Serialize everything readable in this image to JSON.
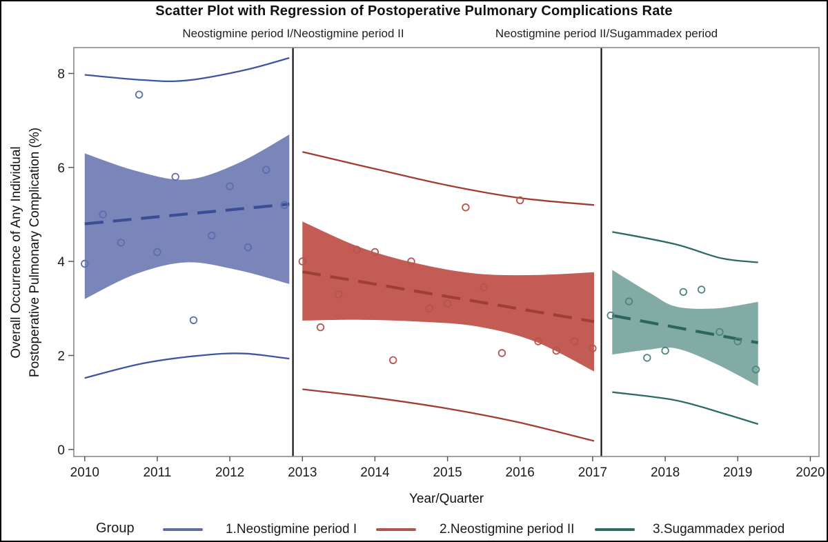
{
  "title": "Scatter Plot with Regression of Postoperative Pulmonary Complications Rate",
  "panel_headers": [
    "Neostigmine period I/Neostigmine period II",
    "Neostigmine period II/Sugammadex period"
  ],
  "y_axis_label_line1": "Overall Occurrence of Any Individual",
  "y_axis_label_line2": "Postoperative Pulmonary Complication (%)",
  "x_axis_label": "Year/Quarter",
  "legend": {
    "title": "Group",
    "entries": [
      {
        "label": "1.Neostigmine period I",
        "color": "#5b6cb0"
      },
      {
        "label": "2.Neostigmine period II",
        "color": "#b5544c"
      },
      {
        "label": "3.Sugammadex period",
        "color": "#2c6b64"
      }
    ]
  },
  "chart_data": {
    "type": "scatter",
    "title": "Scatter Plot with Regression of Postoperative Pulmonary Complications Rate",
    "xlabel": "Year/Quarter",
    "ylabel": "Overall Occurrence of Any Individual Postoperative Pulmonary Complication (%)",
    "x_ticks": [
      2010,
      2011,
      2012,
      2013,
      2014,
      2015,
      2016,
      2017,
      2018,
      2019,
      2020
    ],
    "y_ticks": [
      0,
      2,
      4,
      6,
      8
    ],
    "xlim": [
      2009.85,
      2020.12
    ],
    "ylim": [
      -0.15,
      8.55
    ],
    "grid": false,
    "legend_position": "bottom",
    "panel_dividers_x": [
      2012.87,
      2017.12
    ],
    "series": [
      {
        "name": "1.Neostigmine period I",
        "colors": {
          "band": "#7a86b9",
          "line": "#3d55a5",
          "regression": "#3a4d95",
          "marker": "#5b6cb0"
        },
        "points": [
          [
            2010.0,
            3.95
          ],
          [
            2010.25,
            5.0
          ],
          [
            2010.5,
            4.4
          ],
          [
            2010.75,
            7.55
          ],
          [
            2011.0,
            4.2
          ],
          [
            2011.25,
            5.8
          ],
          [
            2011.5,
            2.75
          ],
          [
            2011.75,
            4.55
          ],
          [
            2012.0,
            5.6
          ],
          [
            2012.25,
            4.3
          ],
          [
            2012.5,
            5.95
          ],
          [
            2012.75,
            5.2
          ]
        ],
        "regression": [
          [
            2010.0,
            4.8
          ],
          [
            2012.82,
            5.22
          ]
        ],
        "band_top": [
          [
            2010.0,
            6.3
          ],
          [
            2010.7,
            5.93
          ],
          [
            2011.4,
            5.74
          ],
          [
            2012.1,
            6.08
          ],
          [
            2012.82,
            6.7
          ]
        ],
        "band_bottom": [
          [
            2010.0,
            3.2
          ],
          [
            2010.7,
            3.73
          ],
          [
            2011.4,
            3.98
          ],
          [
            2012.1,
            3.82
          ],
          [
            2012.82,
            3.52
          ]
        ],
        "upper_limit": [
          [
            2010.0,
            7.97
          ],
          [
            2010.8,
            7.86
          ],
          [
            2011.4,
            7.85
          ],
          [
            2012.2,
            8.07
          ],
          [
            2012.82,
            8.33
          ]
        ],
        "lower_limit": [
          [
            2010.0,
            1.52
          ],
          [
            2010.8,
            1.83
          ],
          [
            2011.6,
            2.0
          ],
          [
            2012.2,
            2.04
          ],
          [
            2012.82,
            1.93
          ]
        ]
      },
      {
        "name": "2.Neostigmine period II",
        "colors": {
          "band": "#c25c55",
          "line": "#a23b33",
          "regression": "#9e3e36",
          "marker": "#b5544c"
        },
        "points": [
          [
            2013.0,
            4.0
          ],
          [
            2013.25,
            2.6
          ],
          [
            2013.5,
            3.3
          ],
          [
            2013.75,
            4.25
          ],
          [
            2014.0,
            4.2
          ],
          [
            2014.25,
            1.9
          ],
          [
            2014.5,
            4.0
          ],
          [
            2014.75,
            3.0
          ],
          [
            2015.0,
            3.1
          ],
          [
            2015.25,
            5.15
          ],
          [
            2015.5,
            3.45
          ],
          [
            2015.75,
            2.05
          ],
          [
            2016.0,
            5.3
          ],
          [
            2016.25,
            2.3
          ],
          [
            2016.5,
            2.1
          ],
          [
            2016.75,
            2.3
          ],
          [
            2017.0,
            2.15
          ]
        ],
        "regression": [
          [
            2013.0,
            3.78
          ],
          [
            2017.02,
            2.72
          ]
        ],
        "band_top": [
          [
            2013.0,
            4.85
          ],
          [
            2013.8,
            4.3
          ],
          [
            2014.6,
            3.95
          ],
          [
            2015.4,
            3.74
          ],
          [
            2016.2,
            3.71
          ],
          [
            2017.02,
            3.77
          ]
        ],
        "band_bottom": [
          [
            2013.0,
            2.74
          ],
          [
            2013.8,
            2.76
          ],
          [
            2014.6,
            2.72
          ],
          [
            2015.4,
            2.62
          ],
          [
            2016.2,
            2.3
          ],
          [
            2017.02,
            1.66
          ]
        ],
        "upper_limit": [
          [
            2013.0,
            6.33
          ],
          [
            2014.0,
            5.97
          ],
          [
            2015.0,
            5.62
          ],
          [
            2016.0,
            5.35
          ],
          [
            2017.02,
            5.2
          ]
        ],
        "lower_limit": [
          [
            2013.0,
            1.28
          ],
          [
            2014.0,
            1.1
          ],
          [
            2015.0,
            0.87
          ],
          [
            2016.0,
            0.57
          ],
          [
            2017.02,
            0.18
          ]
        ]
      },
      {
        "name": "3.Sugammadex period",
        "colors": {
          "band": "#81aba4",
          "line": "#2c6b64",
          "regression": "#2b665f",
          "marker": "#4f837d"
        },
        "points": [
          [
            2017.25,
            2.85
          ],
          [
            2017.5,
            3.15
          ],
          [
            2017.75,
            1.95
          ],
          [
            2018.0,
            2.1
          ],
          [
            2018.25,
            3.35
          ],
          [
            2018.5,
            3.4
          ],
          [
            2018.75,
            2.5
          ],
          [
            2019.0,
            2.3
          ],
          [
            2019.25,
            1.7
          ]
        ],
        "regression": [
          [
            2017.27,
            2.85
          ],
          [
            2019.28,
            2.27
          ]
        ],
        "band_top": [
          [
            2017.27,
            3.82
          ],
          [
            2017.8,
            3.32
          ],
          [
            2018.15,
            3.04
          ],
          [
            2018.7,
            3.0
          ],
          [
            2019.28,
            3.14
          ]
        ],
        "band_bottom": [
          [
            2017.27,
            2.02
          ],
          [
            2017.75,
            2.12
          ],
          [
            2018.15,
            2.15
          ],
          [
            2018.7,
            1.82
          ],
          [
            2019.28,
            1.35
          ]
        ],
        "upper_limit": [
          [
            2017.27,
            4.63
          ],
          [
            2018.13,
            4.37
          ],
          [
            2018.77,
            4.07
          ],
          [
            2019.28,
            3.98
          ]
        ],
        "lower_limit": [
          [
            2017.27,
            1.22
          ],
          [
            2018.13,
            1.05
          ],
          [
            2018.77,
            0.78
          ],
          [
            2019.28,
            0.54
          ]
        ]
      }
    ]
  }
}
